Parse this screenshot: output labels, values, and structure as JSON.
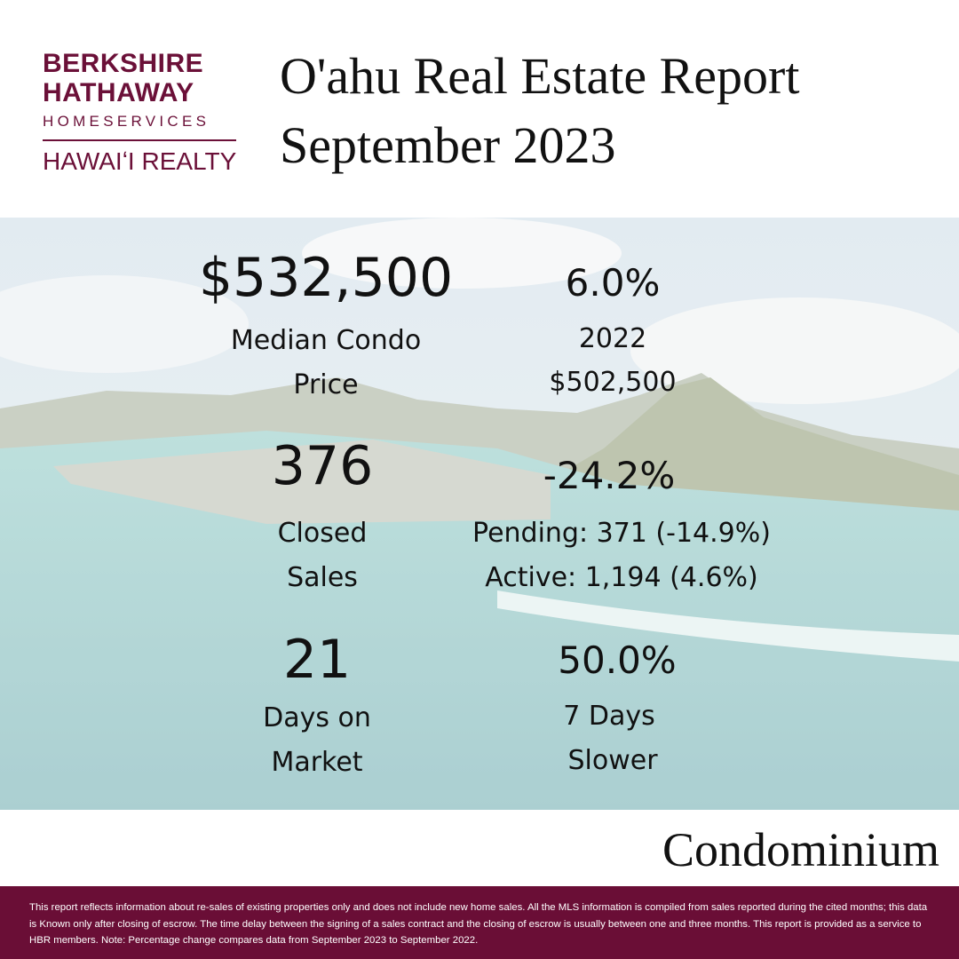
{
  "logo": {
    "line1": "BERKSHIRE",
    "line2": "HATHAWAY",
    "line3": "HOMESERVICES",
    "line4": "HAWAIʻI REALTY"
  },
  "header": {
    "title_line1": "O'ahu Real Estate Report",
    "title_line2": "September 2023"
  },
  "stats": [
    {
      "value": "$532,500",
      "label_lines": [
        "Median Condo",
        "Price"
      ],
      "change": "6.0%",
      "detail_lines": [
        "2022",
        "$502,500"
      ]
    },
    {
      "value": "376",
      "label_lines": [
        "Closed",
        "Sales"
      ],
      "change": "-24.2%",
      "detail_lines": [
        "Pending: 371 (-14.9%)",
        "Active: 1,194 (4.6%)"
      ]
    },
    {
      "value": "21",
      "label_lines": [
        "Days on",
        "Market"
      ],
      "change": "50.0%",
      "detail_lines": [
        "7 Days",
        "Slower"
      ]
    }
  ],
  "category": "Condominium",
  "footer": {
    "disclaimer": "This report reflects information about re-sales of existing properties only and does not include new home sales. All the MLS information is compiled from sales reported during the cited months; this data is Known only after closing of escrow. The time delay between the signing of a sales contract and the closing of escrow is usually between one and three months. This report is provided as a service to HBR members. Note: Percentage change compares data from September 2023 to September 2022."
  }
}
